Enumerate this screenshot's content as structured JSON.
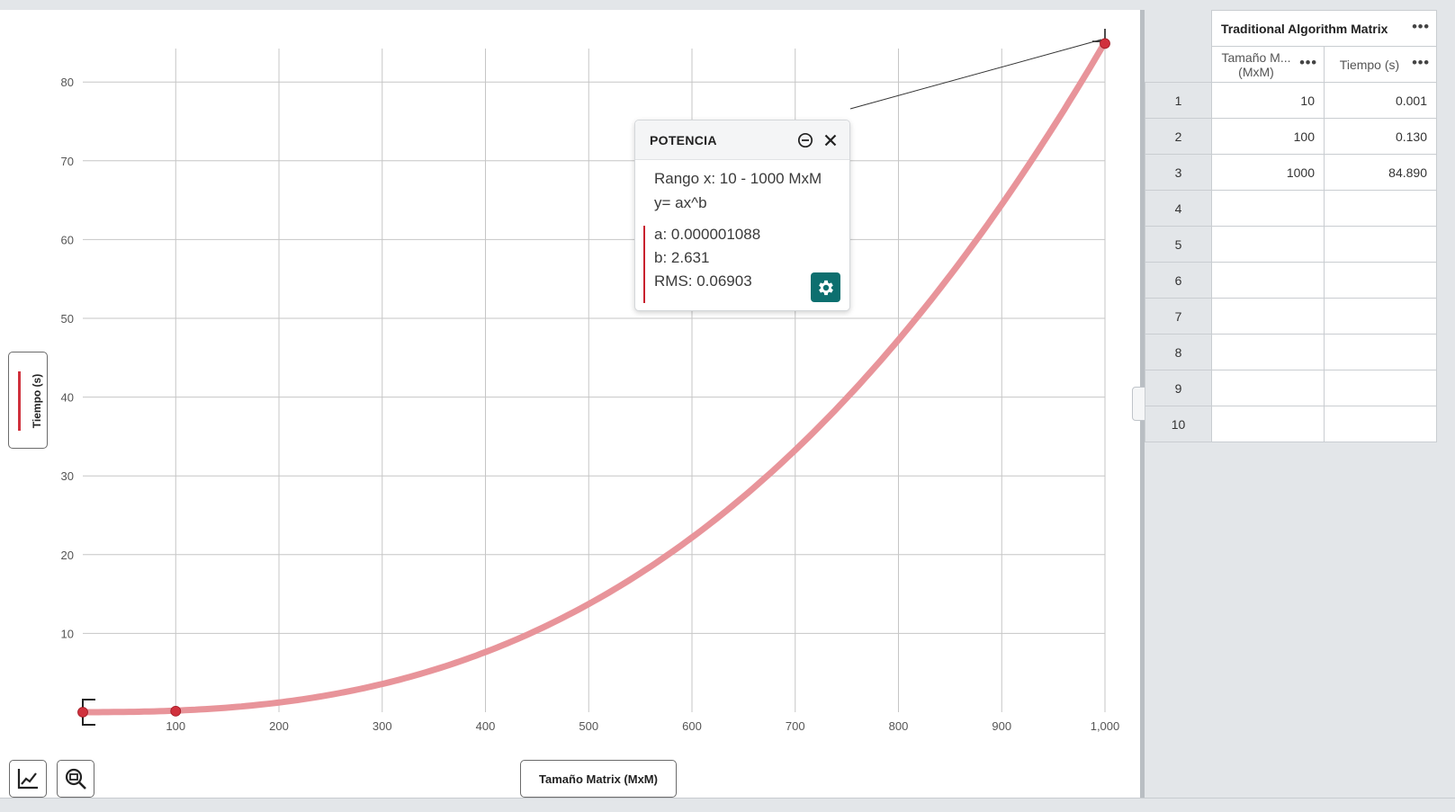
{
  "graph": {
    "y_axis_label": "Tiempo (s)",
    "x_axis_label": "Tamaño Matrix (MxM)",
    "series_color": "#d0313d",
    "curve_color": "#e8949a"
  },
  "chart_data": {
    "type": "scatter",
    "x": [
      10,
      100,
      1000
    ],
    "y": [
      0.001,
      0.13,
      84.89
    ],
    "xlabel": "Tamaño Matrix (MxM)",
    "ylabel": "Tiempo (s)",
    "xlim": [
      10,
      1000
    ],
    "ylim": [
      0,
      85
    ],
    "x_ticks": [
      "100",
      "200",
      "300",
      "400",
      "500",
      "600",
      "700",
      "800",
      "900",
      "1,000"
    ],
    "y_ticks": [
      "10",
      "20",
      "30",
      "40",
      "50",
      "60",
      "70",
      "80"
    ],
    "grid": true,
    "fit": {
      "model": "power",
      "a": 1.088e-06,
      "b": 2.631
    }
  },
  "fit_popup": {
    "title": "POTENCIA",
    "range": "Rango x: 10 - 1000 MxM",
    "equation": "y= ax^b",
    "a": "a: 0.000001088",
    "b": "b: 2.631",
    "rms": "RMS: 0.06903",
    "minimize_icon": "minus-circle-icon",
    "close_icon": "close-icon",
    "settings_icon": "gear-icon",
    "settings_color": "#0d6f6f"
  },
  "toolbar": {
    "graph_tools_icon": "graph-tools-icon",
    "zoom_icon": "zoom-fit-icon"
  },
  "table": {
    "title": "Traditional Algorithm Matrix",
    "col1_header": "Tamaño M... (MxM)",
    "col2_header": "Tiempo (s)",
    "menu_icon": "more-dots-icon",
    "rows": [
      {
        "index": "1",
        "x": "10",
        "y": "0.001"
      },
      {
        "index": "2",
        "x": "100",
        "y": "0.130"
      },
      {
        "index": "3",
        "x": "1000",
        "y": "84.890"
      },
      {
        "index": "4",
        "x": "",
        "y": ""
      },
      {
        "index": "5",
        "x": "",
        "y": ""
      },
      {
        "index": "6",
        "x": "",
        "y": ""
      },
      {
        "index": "7",
        "x": "",
        "y": ""
      },
      {
        "index": "8",
        "x": "",
        "y": ""
      },
      {
        "index": "9",
        "x": "",
        "y": ""
      },
      {
        "index": "10",
        "x": "",
        "y": ""
      }
    ]
  }
}
